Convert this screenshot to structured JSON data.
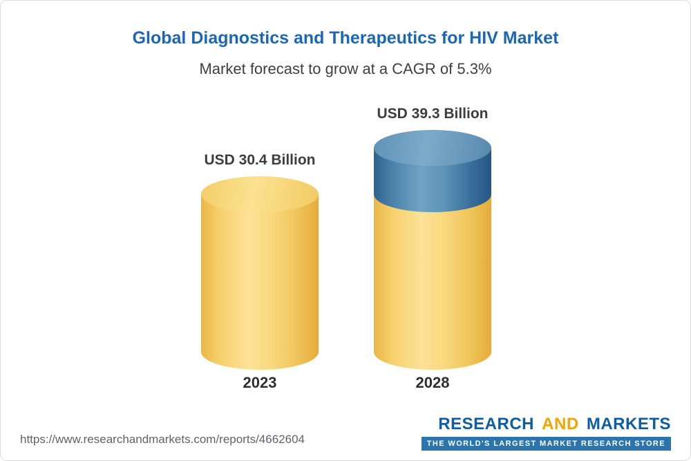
{
  "header": {
    "title": "Global Diagnostics and Therapeutics for HIV Market",
    "subtitle": "Market forecast to grow at a CAGR of 5.3%"
  },
  "chart_data": {
    "type": "bar",
    "variant": "3d-cylinder",
    "title": "Global Diagnostics and Therapeutics for HIV Market",
    "subtitle": "Market forecast to grow at a CAGR of 5.3%",
    "categories": [
      "2023",
      "2028"
    ],
    "values": [
      30.4,
      39.3
    ],
    "value_labels": [
      "USD 30.4 Billion",
      "USD 39.3 Billion"
    ],
    "unit": "USD Billion",
    "cagr_percent": 5.3,
    "growth_segment": {
      "category": "2028",
      "value": 8.9
    },
    "segment_colors": {
      "base": "#f8d173",
      "growth": "#4a81ab"
    },
    "legend_position": "none",
    "grid": false
  },
  "footer": {
    "url": "https://www.researchandmarkets.com/reports/4662604",
    "logo": {
      "research": "RESEARCH",
      "and": "AND",
      "markets": "MARKETS",
      "tagline": "THE WORLD'S LARGEST MARKET RESEARCH STORE"
    }
  }
}
